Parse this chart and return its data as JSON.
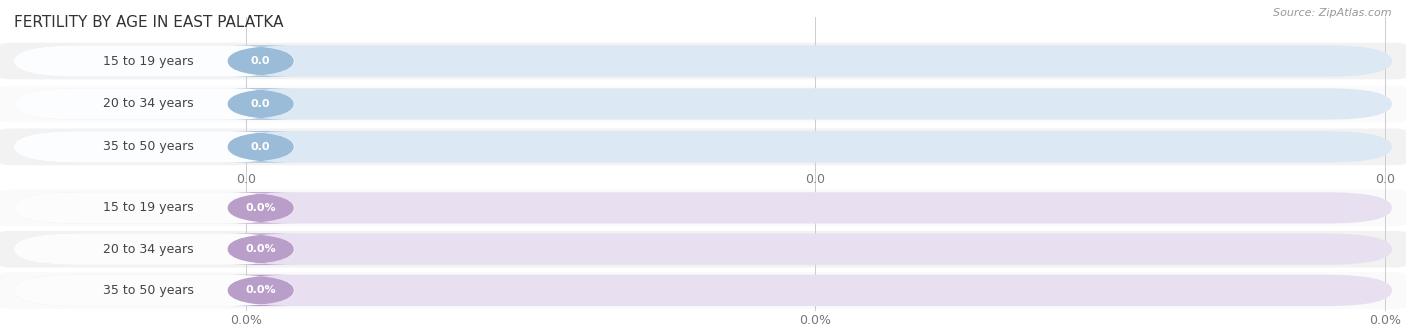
{
  "title": "FERTILITY BY AGE IN EAST PALATKA",
  "source": "Source: ZipAtlas.com",
  "top_group": {
    "labels": [
      "15 to 19 years",
      "20 to 34 years",
      "35 to 50 years"
    ],
    "values": [
      0.0,
      0.0,
      0.0
    ],
    "bar_bg_color": "#dce8f3",
    "bar_fill_color": "#9bbcd8",
    "label_color": "#444444",
    "value_color": "#ffffff",
    "tick_label": "0.0"
  },
  "bottom_group": {
    "labels": [
      "15 to 19 years",
      "20 to 34 years",
      "35 to 50 years"
    ],
    "values": [
      0.0,
      0.0,
      0.0
    ],
    "bar_bg_color": "#e8dff0",
    "bar_fill_color": "#b89ec8",
    "label_color": "#444444",
    "value_color": "#ffffff",
    "tick_label": "0.0%"
  },
  "bg_color": "#ffffff",
  "row_alt_color": "#f0f0f0",
  "title_fontsize": 11,
  "label_fontsize": 9,
  "value_fontsize": 8,
  "tick_fontsize": 9,
  "source_fontsize": 8,
  "figsize": [
    14.06,
    3.3
  ]
}
